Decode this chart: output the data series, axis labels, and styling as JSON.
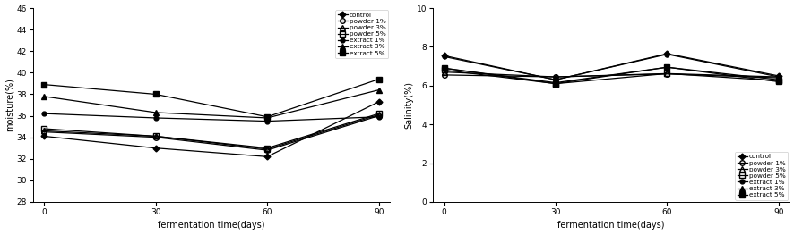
{
  "x": [
    0,
    30,
    60,
    90
  ],
  "moisture": {
    "control": [
      34.1,
      33.0,
      32.2,
      37.3
    ],
    "powder1": [
      34.5,
      34.0,
      32.8,
      36.0
    ],
    "powder3": [
      34.6,
      34.1,
      32.9,
      36.1
    ],
    "powder5": [
      34.8,
      34.1,
      33.0,
      36.2
    ],
    "extract1": [
      36.2,
      35.8,
      35.5,
      35.9
    ],
    "extract3": [
      37.8,
      36.3,
      35.8,
      38.4
    ],
    "extract5": [
      38.9,
      38.0,
      35.9,
      39.4
    ]
  },
  "salinity": {
    "control": [
      7.55,
      6.3,
      7.65,
      6.5
    ],
    "powder1": [
      6.55,
      6.45,
      6.6,
      6.4
    ],
    "powder3": [
      6.7,
      6.45,
      6.62,
      6.45
    ],
    "powder5": [
      6.8,
      6.1,
      6.62,
      6.25
    ],
    "extract1": [
      7.5,
      6.3,
      7.62,
      6.45
    ],
    "extract3": [
      6.9,
      6.15,
      6.95,
      6.3
    ],
    "extract5": [
      6.9,
      6.1,
      6.95,
      6.2
    ]
  },
  "legend_labels": [
    "control",
    "powder 1%",
    "powder 3%",
    "powder 5%",
    "extract 1%",
    "extract 3%",
    "extract 5%"
  ],
  "moisture_ylim": [
    28,
    46
  ],
  "salinity_ylim": [
    0,
    10
  ],
  "moisture_yticks": [
    28,
    30,
    32,
    34,
    36,
    38,
    40,
    42,
    44,
    46
  ],
  "salinity_yticks": [
    0,
    2,
    4,
    6,
    8,
    10
  ],
  "xticks": [
    0,
    30,
    60,
    90
  ],
  "xlabel": "fermentation time(days)",
  "moisture_ylabel": "moisture(%)",
  "salinity_ylabel": "Salinity(%)"
}
